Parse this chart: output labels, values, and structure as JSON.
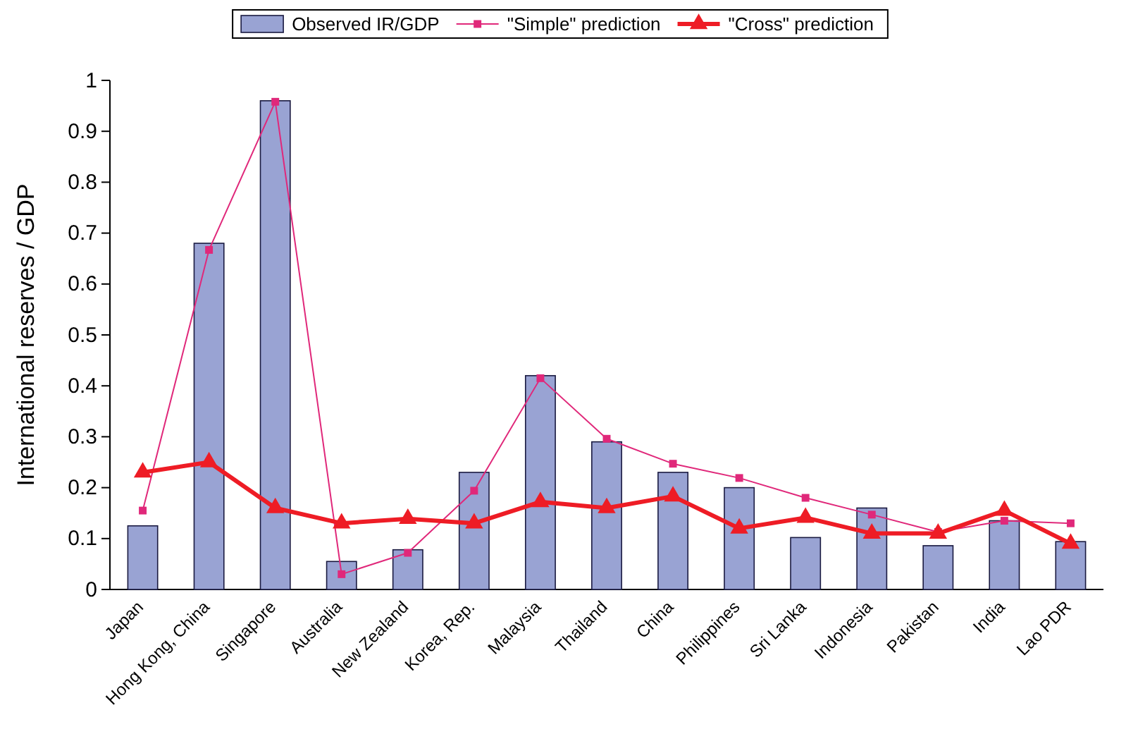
{
  "chart_data": {
    "type": "bar",
    "ylabel": "International reserves / GDP",
    "categories": [
      "Japan",
      "Hong Kong, China",
      "Singapore",
      "Australia",
      "New Zealand",
      "Korea, Rep.",
      "Malaysia",
      "Thailand",
      "China",
      "Philippines",
      "Sri Lanka",
      "Indonesia",
      "Pakistan",
      "India",
      "Lao PDR"
    ],
    "series": [
      {
        "name": "Observed IR/GDP",
        "color": "#99a3d3",
        "values": [
          0.125,
          0.68,
          0.96,
          0.055,
          0.078,
          0.23,
          0.42,
          0.29,
          0.23,
          0.2,
          0.102,
          0.16,
          0.086,
          0.135,
          0.094
        ]
      },
      {
        "name": "\"Simple\" prediction",
        "type": "line",
        "color": "#e0287a",
        "marker": "square",
        "values": [
          0.155,
          0.667,
          0.958,
          0.03,
          0.072,
          0.194,
          0.415,
          0.296,
          0.247,
          0.219,
          0.18,
          0.147,
          0.113,
          0.135,
          0.13
        ]
      },
      {
        "name": "\"Cross\" prediction",
        "type": "line",
        "color": "#ee1c25",
        "marker": "triangle",
        "values": [
          0.23,
          0.25,
          0.16,
          0.13,
          0.139,
          0.13,
          0.172,
          0.16,
          0.183,
          0.12,
          0.141,
          0.11,
          0.11,
          0.155,
          0.09
        ]
      }
    ],
    "ylim": [
      0,
      1
    ],
    "yticks": [
      0,
      0.1,
      0.2,
      0.3,
      0.4,
      0.5,
      0.6,
      0.7,
      0.8,
      0.9,
      1
    ],
    "legend": "top"
  }
}
